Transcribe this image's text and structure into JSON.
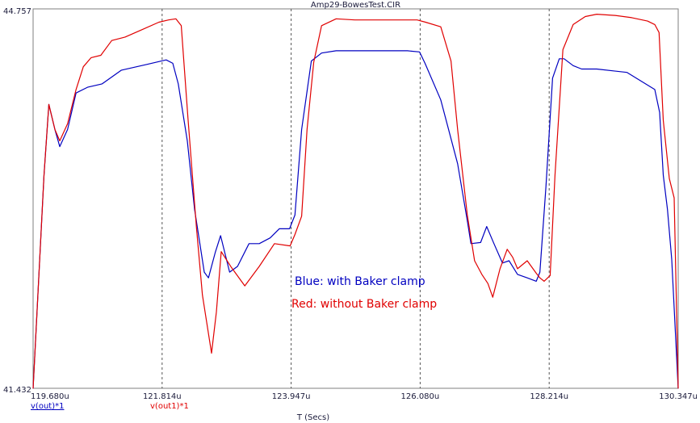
{
  "chart_data": {
    "type": "line",
    "title": "Amp29-BowesTest.CIR",
    "xlabel": "T (Secs)",
    "xlim": [
      119.68,
      130.347
    ],
    "ylim": [
      41.432,
      44.757
    ],
    "x_tick_labels": [
      "119.680u",
      "121.814u",
      "123.947u",
      "126.080u",
      "128.214u",
      "130.347u"
    ],
    "y_tick_labels": [
      "44.757",
      "41.432"
    ],
    "grid": "vertical dashed",
    "annotations": [
      "Blue: with Baker clamp",
      "Red: without Baker clamp"
    ],
    "legend": [
      {
        "label": "v(out)*1",
        "color": "#0000c0"
      },
      {
        "label": "v(out1)*1",
        "color": "#e00000"
      }
    ],
    "series": [
      {
        "color": "#0000c0",
        "x": [
          119.68,
          119.86,
          119.94,
          120.04,
          120.12,
          120.25,
          120.39,
          120.58,
          120.82,
          121.14,
          121.56,
          121.88,
          121.99,
          122.08,
          122.23,
          122.35,
          122.51,
          122.58,
          122.69,
          122.78,
          122.93,
          123.06,
          123.25,
          123.42,
          123.6,
          123.75,
          123.92,
          124.01,
          124.12,
          124.28,
          124.45,
          124.69,
          124.99,
          125.44,
          125.87,
          126.07,
          126.16,
          126.42,
          126.7,
          126.86,
          126.92,
          127.08,
          127.18,
          127.3,
          127.44,
          127.55,
          127.69,
          127.85,
          128.0,
          128.06,
          128.16,
          128.27,
          128.38,
          128.46,
          128.61,
          128.75,
          129.0,
          129.5,
          129.96,
          130.04,
          130.1,
          130.17,
          130.24,
          130.347
        ],
        "y": [
          41.43,
          43.3,
          43.92,
          43.7,
          43.55,
          43.7,
          44.02,
          44.07,
          44.1,
          44.22,
          44.27,
          44.31,
          44.28,
          44.1,
          43.6,
          43.0,
          42.45,
          42.4,
          42.62,
          42.77,
          42.45,
          42.5,
          42.7,
          42.7,
          42.75,
          42.83,
          42.83,
          42.95,
          43.7,
          44.3,
          44.37,
          44.39,
          44.39,
          44.39,
          44.39,
          44.38,
          44.28,
          43.96,
          43.4,
          42.9,
          42.7,
          42.71,
          42.85,
          42.7,
          42.53,
          42.55,
          42.43,
          42.4,
          42.37,
          42.45,
          43.2,
          44.15,
          44.32,
          44.32,
          44.26,
          44.23,
          44.23,
          44.2,
          44.05,
          43.85,
          43.3,
          43.0,
          42.56,
          41.43
        ]
      },
      {
        "color": "#e00000",
        "x": [
          119.68,
          119.86,
          119.94,
          120.04,
          120.12,
          120.25,
          120.39,
          120.51,
          120.64,
          120.8,
          120.98,
          121.2,
          121.46,
          121.76,
          121.92,
          122.04,
          122.13,
          122.24,
          122.38,
          122.48,
          122.63,
          122.71,
          122.79,
          122.96,
          123.18,
          123.42,
          123.67,
          123.93,
          124.01,
          124.12,
          124.21,
          124.32,
          124.45,
          124.69,
          125.0,
          125.45,
          125.83,
          126.03,
          126.17,
          126.42,
          126.59,
          126.7,
          126.86,
          126.98,
          127.1,
          127.2,
          127.28,
          127.4,
          127.52,
          127.61,
          127.69,
          127.85,
          128.0,
          128.06,
          128.13,
          128.23,
          128.31,
          128.44,
          128.61,
          128.81,
          129.0,
          129.3,
          129.58,
          129.84,
          129.96,
          130.03,
          130.1,
          130.2,
          130.28,
          130.347
        ],
        "y": [
          41.43,
          43.3,
          43.92,
          43.7,
          43.6,
          43.75,
          44.05,
          44.25,
          44.33,
          44.35,
          44.48,
          44.51,
          44.57,
          44.64,
          44.66,
          44.67,
          44.61,
          43.8,
          42.85,
          42.25,
          41.74,
          42.1,
          42.63,
          42.49,
          42.33,
          42.5,
          42.7,
          42.68,
          42.78,
          42.94,
          43.7,
          44.29,
          44.61,
          44.67,
          44.66,
          44.66,
          44.66,
          44.66,
          44.64,
          44.6,
          44.3,
          43.7,
          42.95,
          42.55,
          42.43,
          42.35,
          42.23,
          42.48,
          42.65,
          42.58,
          42.48,
          42.55,
          42.44,
          42.4,
          42.37,
          42.42,
          43.3,
          44.4,
          44.62,
          44.69,
          44.71,
          44.7,
          44.68,
          44.65,
          44.62,
          44.55,
          43.78,
          43.27,
          43.1,
          41.43
        ]
      }
    ]
  }
}
